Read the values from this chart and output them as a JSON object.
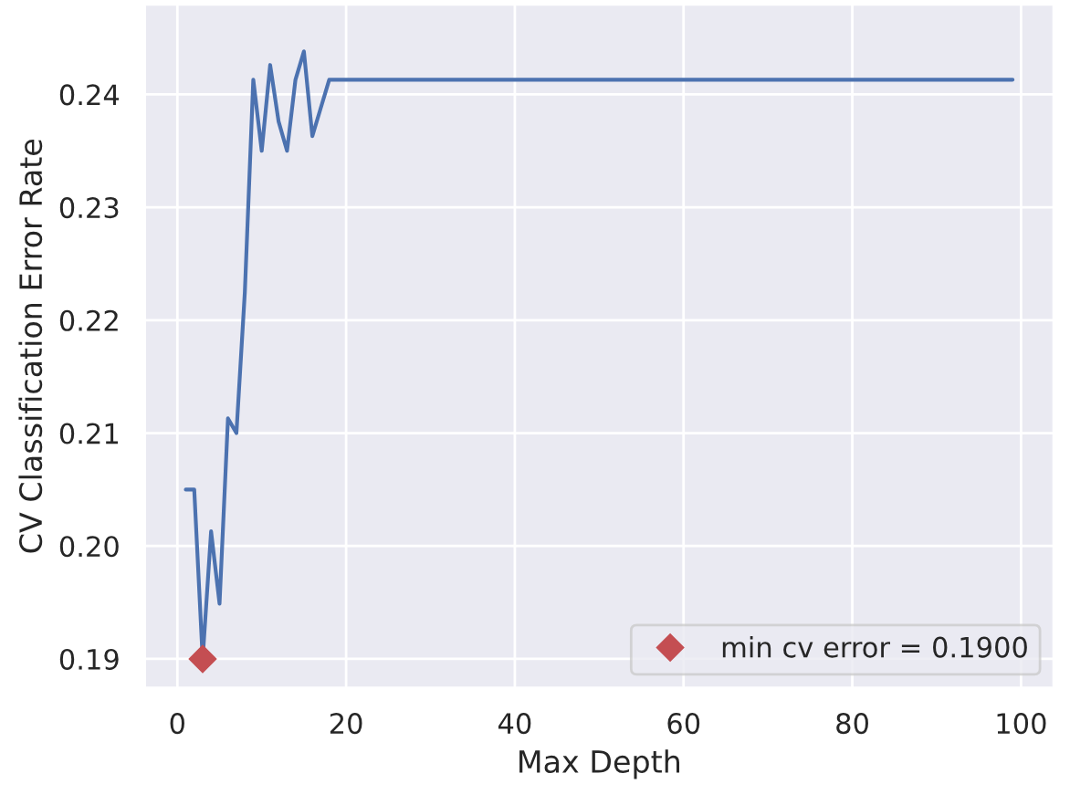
{
  "chart_data": {
    "type": "line",
    "xlabel": "Max Depth",
    "ylabel": "CV Classification Error Rate",
    "xlim": [
      -3.9,
      103.9
    ],
    "xticks": [
      0,
      20,
      40,
      60,
      80,
      100
    ],
    "ylim": [
      0.1874,
      0.248
    ],
    "yticks": [
      0.19,
      {
        "value": 0.2,
        "label": "0.20"
      },
      0.21,
      0.22,
      0.23,
      0.24
    ],
    "grid": true,
    "legend": "bottom right",
    "series": [
      {
        "color": "#4c72b0",
        "marker": "none",
        "x": [
          1,
          2,
          3,
          4,
          5,
          6,
          7,
          8,
          9,
          10,
          11,
          12,
          13,
          14,
          15,
          16,
          17,
          18,
          99
        ],
        "values": [
          0.205,
          0.205,
          0.19,
          0.2013,
          0.1949,
          0.2113,
          0.21,
          0.2225,
          0.2413,
          0.235,
          0.2426,
          0.2376,
          0.235,
          0.2413,
          0.2438,
          0.2363,
          0.2388,
          0.2413,
          0.2413
        ]
      },
      {
        "type": "scatter",
        "name": "min cv error = 0.1900",
        "color": "#c44e52",
        "marker": "diamond",
        "x": [
          3
        ],
        "values": [
          0.19
        ]
      }
    ]
  }
}
